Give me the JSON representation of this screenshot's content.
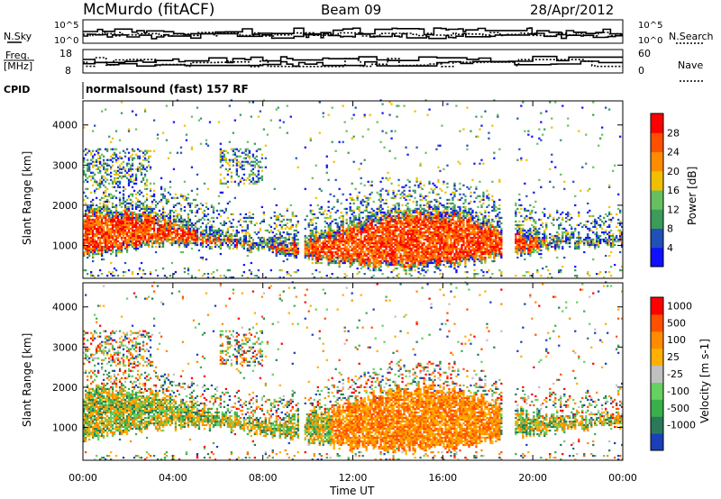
{
  "header": {
    "station": "McMurdo (fitACF)",
    "beam": "Beam 09",
    "date": "28/Apr/2012"
  },
  "labels": {
    "nsky": "N.Sky",
    "nsearch": "N.Search",
    "freq_line1": "Freq.",
    "freq_line2": "[MHz]",
    "nave": "Nave",
    "cpid": "CPID",
    "cpid_value": "normalsound (fast) 157 RF"
  },
  "noise_panel": {
    "ticks_left": [
      "10^5",
      "10^0"
    ],
    "ticks_right": [
      "10^5",
      "10^0"
    ]
  },
  "freq_panel": {
    "ticks_left": [
      "18",
      "8"
    ],
    "ticks_right": [
      "60",
      "0"
    ]
  },
  "chart_data": [
    {
      "type": "heatmap",
      "name": "power",
      "ylabel": "Slant Range [km]",
      "ylim": [
        180,
        4600
      ],
      "yticks": [
        "1000",
        "2000",
        "3000",
        "4000"
      ],
      "xlim_hours": [
        0,
        24
      ],
      "xticks": [
        "00:00",
        "04:00",
        "08:00",
        "12:00",
        "16:00",
        "20:00",
        "00:00"
      ],
      "colorbar": {
        "label": "Power [dB]",
        "range": [
          0,
          32
        ],
        "ticks": [
          "28",
          "24",
          "20",
          "16",
          "12",
          "8",
          "4"
        ],
        "colors": [
          "#1010ff",
          "#2050b8",
          "#3a9b5a",
          "#66c060",
          "#f0c000",
          "#ff8c00",
          "#ff5000",
          "#ff0000"
        ]
      }
    },
    {
      "type": "heatmap",
      "name": "velocity",
      "ylabel": "Slant Range [km]",
      "ylim": [
        180,
        4600
      ],
      "yticks": [
        "1000",
        "2000",
        "3000",
        "4000"
      ],
      "xlim_hours": [
        0,
        24
      ],
      "xticks": [
        "00:00",
        "04:00",
        "08:00",
        "12:00",
        "16:00",
        "20:00",
        "00:00"
      ],
      "xlabel": "Time UT",
      "colorbar": {
        "label": "Velocity [m s-1]",
        "ticks": [
          "1000",
          "500",
          "100",
          "25",
          "-25",
          "-100",
          "-500",
          "-1000"
        ],
        "colors": [
          "#1a3fb8",
          "#2a7a5a",
          "#3ab04a",
          "#66d060",
          "#c0c0c0",
          "#ffb000",
          "#ff8c00",
          "#ff5000",
          "#ff0000"
        ]
      }
    }
  ]
}
